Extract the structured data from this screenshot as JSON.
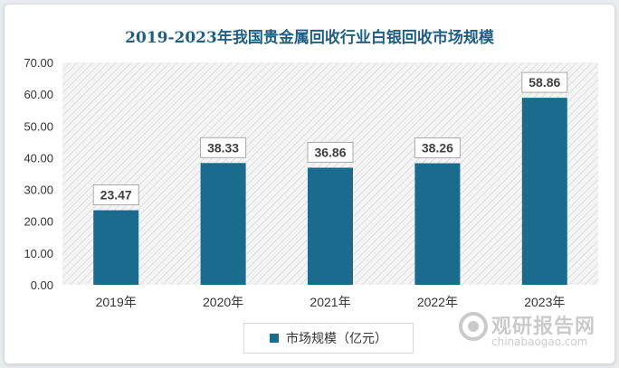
{
  "chart_data": {
    "type": "bar",
    "title": "2019-2023年我国贵金属回收行业白银回收市场规模",
    "categories": [
      "2019年",
      "2020年",
      "2021年",
      "2022年",
      "2023年"
    ],
    "series": [
      {
        "name": "市场规模（亿元）",
        "values": [
          23.47,
          38.33,
          36.86,
          38.26,
          58.86
        ]
      }
    ],
    "value_labels": [
      "23.47",
      "38.33",
      "36.86",
      "38.26",
      "58.86"
    ],
    "y_ticks": [
      "0.00",
      "10.00",
      "20.00",
      "30.00",
      "40.00",
      "50.00",
      "60.00",
      "70.00"
    ],
    "ylim": [
      0,
      70
    ],
    "grid": false,
    "legend_position": "bottom",
    "bar_color": "#1b6b8f",
    "plot_background": "hatched-gray"
  },
  "watermark": {
    "brand_cn": "观研报告网",
    "brand_en": "chinabaogao.com"
  }
}
